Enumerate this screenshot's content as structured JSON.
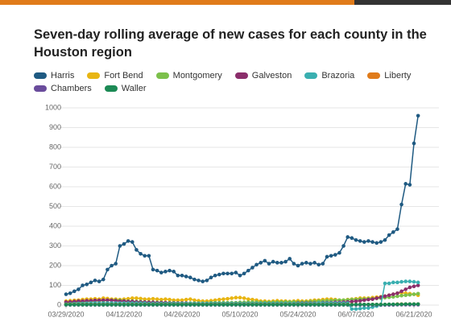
{
  "chart_data": {
    "type": "line",
    "title": "Seven-day rolling average of new cases for each county in the Houston region",
    "x": [
      "03/29/2020",
      "03/30/2020",
      "03/31/2020",
      "04/01/2020",
      "04/02/2020",
      "04/03/2020",
      "04/04/2020",
      "04/05/2020",
      "04/06/2020",
      "04/07/2020",
      "04/08/2020",
      "04/09/2020",
      "04/10/2020",
      "04/11/2020",
      "04/12/2020",
      "04/13/2020",
      "04/14/2020",
      "04/15/2020",
      "04/16/2020",
      "04/17/2020",
      "04/18/2020",
      "04/19/2020",
      "04/20/2020",
      "04/21/2020",
      "04/22/2020",
      "04/23/2020",
      "04/24/2020",
      "04/25/2020",
      "04/26/2020",
      "04/27/2020",
      "04/28/2020",
      "04/29/2020",
      "04/30/2020",
      "05/01/2020",
      "05/02/2020",
      "05/03/2020",
      "05/04/2020",
      "05/05/2020",
      "05/06/2020",
      "05/07/2020",
      "05/08/2020",
      "05/09/2020",
      "05/10/2020",
      "05/11/2020",
      "05/12/2020",
      "05/13/2020",
      "05/14/2020",
      "05/15/2020",
      "05/16/2020",
      "05/17/2020",
      "05/18/2020",
      "05/19/2020",
      "05/20/2020",
      "05/21/2020",
      "05/22/2020",
      "05/23/2020",
      "05/24/2020",
      "05/25/2020",
      "05/26/2020",
      "05/27/2020",
      "05/28/2020",
      "05/29/2020",
      "05/30/2020",
      "05/31/2020",
      "06/01/2020",
      "06/02/2020",
      "06/03/2020",
      "06/04/2020",
      "06/05/2020",
      "06/06/2020",
      "06/07/2020",
      "06/08/2020",
      "06/09/2020",
      "06/10/2020",
      "06/11/2020",
      "06/12/2020",
      "06/13/2020",
      "06/14/2020",
      "06/15/2020",
      "06/16/2020",
      "06/17/2020",
      "06/18/2020",
      "06/19/2020",
      "06/20/2020",
      "06/21/2020",
      "06/22/2020"
    ],
    "xticks": [
      "03/29/2020",
      "04/12/2020",
      "04/26/2020",
      "05/10/2020",
      "05/24/2020",
      "06/07/2020",
      "06/21/2020"
    ],
    "ylim": [
      0,
      1000
    ],
    "yticks": [
      0,
      100,
      200,
      300,
      400,
      500,
      600,
      700,
      800,
      900,
      1000
    ],
    "grid": true,
    "markers": true,
    "legend": "top",
    "series": [
      {
        "name": "Harris",
        "color": "#1f5a82",
        "values": [
          55,
          60,
          70,
          80,
          100,
          105,
          115,
          125,
          120,
          130,
          180,
          200,
          210,
          300,
          310,
          325,
          320,
          280,
          260,
          250,
          250,
          180,
          175,
          165,
          170,
          175,
          170,
          150,
          150,
          145,
          140,
          130,
          125,
          120,
          125,
          140,
          150,
          155,
          160,
          160,
          160,
          165,
          150,
          160,
          175,
          190,
          205,
          215,
          225,
          210,
          220,
          215,
          215,
          220,
          235,
          210,
          200,
          210,
          215,
          210,
          215,
          205,
          210,
          245,
          250,
          255,
          265,
          300,
          345,
          340,
          330,
          325,
          320,
          325,
          320,
          315,
          320,
          330,
          355,
          370,
          385,
          510,
          615,
          610,
          820,
          960
        ]
      },
      {
        "name": "Fort Bend",
        "color": "#e8b512",
        "values": [
          20,
          22,
          24,
          25,
          28,
          30,
          30,
          32,
          30,
          35,
          33,
          30,
          30,
          28,
          30,
          32,
          35,
          35,
          33,
          30,
          30,
          32,
          30,
          28,
          30,
          28,
          25,
          25,
          25,
          28,
          30,
          25,
          22,
          20,
          20,
          22,
          25,
          28,
          30,
          32,
          35,
          38,
          38,
          35,
          30,
          28,
          25,
          20,
          20,
          18,
          20,
          22,
          20,
          20,
          18,
          20,
          22,
          20,
          20,
          22,
          25,
          25,
          28,
          30,
          30,
          28,
          25,
          25,
          28,
          30,
          32,
          35,
          35,
          35,
          38,
          40,
          42,
          45,
          50,
          55,
          60,
          62,
          60,
          58,
          55,
          50
        ]
      },
      {
        "name": "Montgomery",
        "color": "#7cc04b",
        "values": [
          10,
          12,
          14,
          15,
          16,
          18,
          20,
          20,
          22,
          22,
          24,
          25,
          25,
          24,
          22,
          20,
          20,
          18,
          18,
          16,
          15,
          15,
          14,
          14,
          12,
          12,
          12,
          10,
          10,
          10,
          10,
          10,
          10,
          10,
          10,
          12,
          12,
          12,
          12,
          12,
          12,
          12,
          14,
          14,
          15,
          15,
          15,
          14,
          14,
          14,
          14,
          15,
          15,
          16,
          16,
          16,
          15,
          15,
          16,
          18,
          18,
          20,
          20,
          22,
          22,
          24,
          25,
          25,
          26,
          28,
          28,
          30,
          30,
          32,
          32,
          34,
          35,
          38,
          40,
          42,
          45,
          48,
          50,
          52,
          55,
          58
        ]
      },
      {
        "name": "Galveston",
        "color": "#8b2e6b",
        "values": [
          15,
          16,
          18,
          20,
          20,
          22,
          22,
          24,
          24,
          25,
          25,
          24,
          22,
          20,
          20,
          18,
          18,
          16,
          15,
          15,
          14,
          14,
          12,
          12,
          12,
          10,
          10,
          10,
          10,
          10,
          8,
          8,
          8,
          8,
          8,
          8,
          8,
          8,
          8,
          8,
          8,
          8,
          8,
          8,
          8,
          8,
          8,
          8,
          8,
          8,
          8,
          8,
          8,
          8,
          8,
          8,
          10,
          10,
          10,
          10,
          10,
          10,
          12,
          12,
          12,
          14,
          14,
          15,
          16,
          18,
          20,
          22,
          25,
          28,
          30,
          35,
          40,
          45,
          50,
          55,
          60,
          70,
          80,
          90,
          95,
          100
        ]
      },
      {
        "name": "Brazoria",
        "color": "#3aafb0",
        "values": [
          5,
          6,
          7,
          8,
          8,
          9,
          10,
          10,
          10,
          10,
          10,
          10,
          10,
          10,
          10,
          10,
          10,
          10,
          10,
          10,
          8,
          8,
          8,
          8,
          8,
          8,
          8,
          8,
          8,
          8,
          8,
          8,
          8,
          8,
          8,
          8,
          8,
          8,
          8,
          8,
          8,
          8,
          8,
          8,
          8,
          8,
          8,
          8,
          8,
          8,
          8,
          8,
          8,
          8,
          8,
          8,
          8,
          8,
          8,
          8,
          8,
          10,
          10,
          10,
          10,
          10,
          10,
          10,
          10,
          -20,
          -20,
          -18,
          -15,
          -15,
          -10,
          -5,
          0,
          110,
          110,
          115,
          115,
          118,
          120,
          120,
          118,
          115
        ]
      },
      {
        "name": "Liberty",
        "color": "#e07b1a",
        "values": [
          3,
          3,
          3,
          3,
          3,
          3,
          3,
          3,
          3,
          3,
          3,
          3,
          3,
          3,
          3,
          3,
          3,
          3,
          3,
          3,
          3,
          3,
          3,
          3,
          3,
          3,
          3,
          3,
          3,
          3,
          3,
          3,
          3,
          3,
          3,
          3,
          3,
          3,
          3,
          3,
          3,
          3,
          3,
          3,
          3,
          3,
          3,
          3,
          3,
          3,
          3,
          3,
          3,
          3,
          3,
          3,
          3,
          3,
          3,
          3,
          3,
          3,
          3,
          3,
          3,
          3,
          3,
          3,
          3,
          3,
          3,
          3,
          3,
          3,
          3,
          3,
          3,
          3,
          3,
          3,
          5,
          5,
          5,
          5,
          5,
          5
        ]
      },
      {
        "name": "Chambers",
        "color": "#6a4c9c",
        "values": [
          1,
          1,
          1,
          1,
          1,
          1,
          1,
          1,
          1,
          1,
          1,
          1,
          1,
          1,
          1,
          1,
          1,
          1,
          1,
          1,
          1,
          1,
          1,
          1,
          1,
          1,
          1,
          1,
          1,
          1,
          1,
          1,
          1,
          1,
          1,
          1,
          1,
          1,
          1,
          1,
          1,
          1,
          1,
          1,
          1,
          1,
          1,
          1,
          1,
          1,
          1,
          1,
          1,
          1,
          1,
          1,
          1,
          1,
          1,
          1,
          1,
          1,
          1,
          1,
          1,
          1,
          1,
          1,
          1,
          1,
          1,
          1,
          1,
          1,
          1,
          1,
          1,
          1,
          1,
          1,
          2,
          2,
          2,
          2,
          2,
          2
        ]
      },
      {
        "name": "Waller",
        "color": "#1c8a55",
        "values": [
          2,
          2,
          2,
          2,
          2,
          2,
          2,
          2,
          2,
          2,
          2,
          2,
          2,
          2,
          2,
          2,
          2,
          2,
          2,
          2,
          2,
          2,
          2,
          2,
          2,
          2,
          2,
          2,
          2,
          2,
          2,
          2,
          2,
          2,
          2,
          2,
          2,
          2,
          2,
          2,
          2,
          2,
          2,
          2,
          2,
          2,
          2,
          2,
          2,
          2,
          2,
          2,
          2,
          2,
          2,
          2,
          2,
          2,
          2,
          2,
          2,
          2,
          2,
          2,
          2,
          2,
          2,
          2,
          2,
          2,
          3,
          3,
          3,
          3,
          3,
          3,
          3,
          3,
          4,
          4,
          4,
          4,
          5,
          5,
          5,
          5
        ]
      }
    ]
  }
}
